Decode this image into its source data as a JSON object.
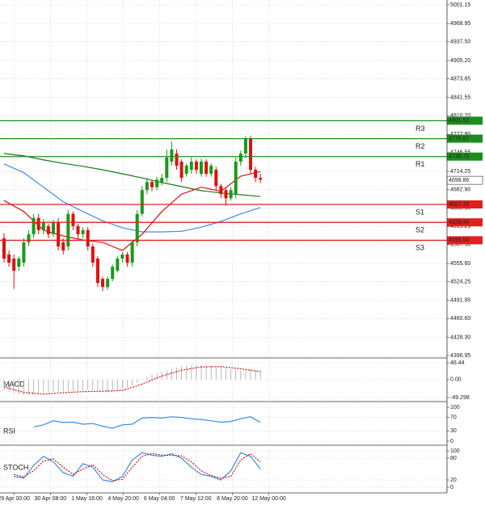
{
  "chart_data": [
    {
      "type": "candlestick",
      "xlim": [
        -0.82,
        89.84
      ],
      "ylim": [
        4392.8,
        5009.5
      ],
      "yticks": [
        5001.15,
        4968.95,
        {
          "value": 4937.5,
          "label": "4937.50"
        },
        {
          "value": 4905.2,
          "label": "4905.20"
        },
        4873.85,
        4841.55,
        {
          "value": 4810.2,
          "label": "4810.20"
        },
        {
          "value": 4777.9,
          "label": "4777.90"
        },
        4746.55,
        4714.25,
        {
          "value": 4682.9,
          "label": "4682.90"
        },
        {
          "value": 4650.6,
          "label": "4650.60"
        },
        4619.25,
        {
          "value": 4587.9,
          "label": "4587.90"
        },
        {
          "value": 4555.6,
          "label": "4555.60"
        },
        4524.25,
        4491.95,
        {
          "value": 4460.6,
          "label": "4460.60"
        },
        {
          "value": 4428.3,
          "label": "4428.30"
        },
        4396.95
      ],
      "up_color": "#1a9a1a",
      "down_color": "#e01010",
      "open": [
        4599,
        4571,
        4564,
        4550,
        4557,
        4592,
        4606,
        4634,
        4613,
        4620,
        4606,
        4627,
        4592,
        4585,
        4641,
        4620,
        4606,
        4613,
        4585,
        4564,
        4529,
        4515,
        4529,
        4543,
        4564,
        4571,
        4557,
        4592,
        4641,
        4682,
        4696,
        4687,
        4696,
        4703,
        4731,
        4745,
        4731,
        4710,
        4717,
        4731,
        4710,
        4731,
        4710,
        4717,
        4689,
        4682,
        4668,
        4675,
        4731,
        4745,
        4770,
        4717,
        4703
      ],
      "high": [
        4608,
        4578,
        4571,
        4568,
        4599,
        4613,
        4641,
        4641,
        4632,
        4624,
        4631,
        4634,
        4599,
        4648,
        4645,
        4624,
        4618,
        4618,
        4590,
        4568,
        4533,
        4533,
        4554,
        4568,
        4575,
        4575,
        4596,
        4648,
        4689,
        4703,
        4700,
        4705,
        4710,
        4752,
        4766,
        4752,
        4735,
        4728,
        4738,
        4735,
        4736,
        4735,
        4728,
        4722,
        4693,
        4686,
        4687,
        4738,
        4750,
        4775,
        4775,
        4722,
        4710
      ],
      "low": [
        4557,
        4550,
        4512,
        4543,
        4550,
        4585,
        4599,
        4606,
        4606,
        4599,
        4601,
        4578,
        4571,
        4578,
        4613,
        4599,
        4599,
        4578,
        4550,
        4515,
        4508,
        4510,
        4525,
        4540,
        4557,
        4550,
        4550,
        4585,
        4636,
        4675,
        4680,
        4682,
        4690,
        4696,
        4724,
        4717,
        4696,
        4705,
        4710,
        4710,
        4705,
        4705,
        4705,
        4682,
        4668,
        4655,
        4664,
        4668,
        4724,
        4738,
        4710,
        4696,
        4694
      ],
      "close": [
        4564,
        4557,
        4543,
        4564,
        4592,
        4606,
        4634,
        4613,
        4627,
        4606,
        4627,
        4585,
        4578,
        4641,
        4620,
        4606,
        4613,
        4585,
        4557,
        4522,
        4515,
        4529,
        4550,
        4564,
        4571,
        4557,
        4592,
        4641,
        4682,
        4696,
        4687,
        4700,
        4703,
        4738,
        4752,
        4724,
        4703,
        4724,
        4731,
        4717,
        4731,
        4710,
        4724,
        4689,
        4675,
        4668,
        4682,
        4731,
        4745,
        4770,
        4717,
        4703,
        4700
      ],
      "series": [
        {
          "color": "#3a8ee6",
          "x": [
            0,
            4,
            8,
            12,
            16,
            20,
            24,
            28,
            32,
            36,
            40,
            44,
            48,
            52
          ],
          "values": [
            4727,
            4712,
            4687,
            4662,
            4645,
            4629,
            4617,
            4610,
            4610,
            4611,
            4618,
            4628,
            4641,
            4652
          ]
        },
        {
          "color": "#1a7a1a",
          "x": [
            0,
            4,
            8,
            12,
            16,
            20,
            24,
            28,
            32,
            36,
            40,
            44,
            48,
            52
          ],
          "values": [
            4745,
            4741,
            4734,
            4728,
            4723,
            4717,
            4710,
            4703,
            4695,
            4688,
            4681,
            4677,
            4674,
            4671
          ]
        },
        {
          "color": "#e01010",
          "x": [
            0,
            4,
            8,
            12,
            16,
            20,
            24,
            28,
            32,
            36,
            40,
            44,
            48,
            52
          ],
          "values": [
            4664,
            4645,
            4613,
            4603,
            4596,
            4592,
            4578,
            4606,
            4645,
            4675,
            4687,
            4680,
            4706,
            4714
          ]
        }
      ],
      "levels": [
        {
          "name": "R3",
          "value": 4801.52,
          "color": "#1e8c1e"
        },
        {
          "name": "R2",
          "value": 4770.62,
          "color": "#1e8c1e"
        },
        {
          "name": "R1",
          "value": 4739.73,
          "color": "#1e8c1e"
        },
        {
          "name": "S1",
          "value": 4657.33,
          "color": "#e0201e"
        },
        {
          "name": "S2",
          "value": 4626.44,
          "color": "#e0201e"
        },
        {
          "name": "S3",
          "value": 4595.54,
          "color": "#e0201e"
        }
      ],
      "last_price": 4698.86
    },
    {
      "type": "macd",
      "title": "MACD",
      "xlim": [
        -0.82,
        89.84
      ],
      "ylim": [
        -60.4,
        59.8
      ],
      "yticks": [
        46.44,
        {
          "value": 0,
          "label": "0.00"
        },
        -49.298
      ],
      "histogram_color": "#a8a8a8",
      "values": [
        -30,
        -34,
        -38,
        -40,
        -42,
        -43,
        -42,
        -40,
        -38,
        -36,
        -34,
        -33,
        -32,
        -33,
        -32,
        -30,
        -28,
        -27,
        -28,
        -30,
        -33,
        -35,
        -33,
        -30,
        -25,
        -20,
        -15,
        -8,
        0,
        8,
        14,
        18,
        22,
        26,
        30,
        34,
        37,
        39,
        40,
        40,
        40,
        39,
        38,
        37,
        35,
        32,
        28,
        26,
        26,
        27,
        28,
        26,
        24
      ],
      "series": [
        {
          "color": "#e01010",
          "dash": true,
          "x": [
            0,
            4,
            8,
            12,
            16,
            20,
            24,
            28,
            32,
            36,
            40,
            44,
            48,
            52
          ],
          "values": [
            -20,
            -35,
            -40,
            -36,
            -33,
            -32,
            -30,
            -12,
            10,
            26,
            35,
            36,
            30,
            22
          ]
        }
      ]
    },
    {
      "type": "line",
      "title": "RSI",
      "xlim": [
        -0.82,
        89.84
      ],
      "ylim": [
        -11.9,
        116.7
      ],
      "yticks": [
        100,
        70,
        30,
        0
      ],
      "series": [
        {
          "color": "#3a8ee6",
          "x": [
            6,
            8,
            10,
            12,
            14,
            16,
            18,
            20,
            22,
            24,
            26,
            28,
            30,
            32,
            34,
            36,
            38,
            40,
            42,
            44,
            46,
            48,
            50,
            52
          ],
          "values": [
            42,
            48,
            60,
            55,
            56,
            50,
            52,
            44,
            38,
            48,
            50,
            68,
            70,
            68,
            72,
            70,
            66,
            64,
            60,
            56,
            58,
            66,
            72,
            55
          ]
        }
      ]
    },
    {
      "type": "line",
      "title": "STOCH",
      "xlim": [
        -0.82,
        89.84
      ],
      "ylim": [
        -15.6,
        115.6
      ],
      "yticks": [
        100,
        80,
        20,
        0
      ],
      "series": [
        {
          "color": "#3a8ee6",
          "x": [
            2,
            4,
            6,
            8,
            10,
            12,
            14,
            16,
            18,
            20,
            22,
            24,
            26,
            28,
            30,
            32,
            34,
            36,
            38,
            40,
            42,
            44,
            46,
            48,
            50,
            52
          ],
          "values": [
            30,
            25,
            60,
            85,
            70,
            40,
            30,
            65,
            55,
            20,
            15,
            30,
            75,
            95,
            88,
            85,
            92,
            80,
            55,
            35,
            30,
            20,
            45,
            95,
            85,
            50
          ]
        },
        {
          "color": "#e01010",
          "dash": true,
          "x": [
            2,
            4,
            6,
            8,
            10,
            12,
            14,
            16,
            18,
            20,
            22,
            24,
            26,
            28,
            30,
            32,
            34,
            36,
            38,
            40,
            42,
            44,
            46,
            48,
            50,
            52
          ],
          "values": [
            35,
            28,
            45,
            72,
            78,
            55,
            35,
            50,
            62,
            35,
            18,
            22,
            55,
            85,
            93,
            88,
            88,
            86,
            70,
            45,
            32,
            25,
            30,
            75,
            92,
            70
          ]
        }
      ],
      "xticks": [
        {
          "value": 2,
          "label": "29 Apr 00:00"
        },
        {
          "value": 9.4,
          "label": "30 Apr 08:00"
        },
        {
          "value": 16.8,
          "label": "1 May 16:00"
        },
        {
          "value": 24.2,
          "label": "4 May 20:00"
        },
        {
          "value": 31.5,
          "label": "6 May 04:00"
        },
        {
          "value": 38.9,
          "label": "7 May 12:00"
        },
        {
          "value": 46.3,
          "label": "8 May 20:00"
        },
        {
          "value": 53.7,
          "label": "12 May 00:00"
        }
      ]
    }
  ]
}
